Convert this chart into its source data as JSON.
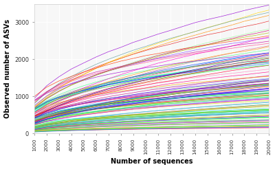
{
  "x_min": 1000,
  "x_max": 20000,
  "y_min": 0,
  "y_max": 3500,
  "x_ticks": [
    1000,
    2000,
    3000,
    4000,
    5000,
    6000,
    7000,
    8000,
    9000,
    10000,
    11000,
    12000,
    13000,
    14000,
    15000,
    16000,
    17000,
    18000,
    19000,
    20000
  ],
  "y_ticks": [
    0,
    1000,
    2000,
    3000
  ],
  "xlabel": "Number of sequences",
  "ylabel": "Observed number of ASVs",
  "n_curves": 120,
  "background_color": "#f7f7f7",
  "line_alpha": 0.85,
  "line_width": 0.5,
  "colors": [
    "#e41a1c",
    "#ff69b4",
    "#377eb8",
    "#4daf4a",
    "#984ea3",
    "#ff7f00",
    "#a65628",
    "#f781bf",
    "#aaaaaa",
    "#00ced1",
    "#8b0000",
    "#00cd66",
    "#1e90ff",
    "#ffd700",
    "#dc143c",
    "#7ccd7c",
    "#9400d3",
    "#ff4500",
    "#2e8b57",
    "#00bfff",
    "#ff1493",
    "#adff2f",
    "#6495ed",
    "#ff6347",
    "#40e0d0",
    "#ee82ee",
    "#cdcd00",
    "#90ee90",
    "#87ceeb",
    "#dda0dd",
    "#20b2aa",
    "#b0c4de",
    "#ffb6c1",
    "#98fb98",
    "#afeeee",
    "#db7093",
    "#ffe4b5",
    "#b0e0e6",
    "#bc8f8f",
    "#5f9ea0",
    "#d2691e",
    "#cd5c5c",
    "#4682b4",
    "#32cd32",
    "#ba55d3",
    "#ff8c00",
    "#3cb371",
    "#6a5acd",
    "#ff85c2",
    "#00ff7f",
    "#c71585",
    "#66cdaa",
    "#9932cc",
    "#8fbc8f",
    "#e9967a",
    "#48d1cc",
    "#f08080",
    "#7b68ee",
    "#39ff14",
    "#ff2400",
    "#00ffff",
    "#ff00ff",
    "#ffaa00",
    "#00aa44",
    "#aa00ff",
    "#ff0088",
    "#88ff00",
    "#0088ff",
    "#ff4488",
    "#44ff88",
    "#8844ff",
    "#ff8844",
    "#44ff00",
    "#0044ff",
    "#ff0044",
    "#00ff44",
    "#4400ff",
    "#ffcc00",
    "#00ccff",
    "#cc00ff",
    "#ff00cc",
    "#00ffcc",
    "#ccff00",
    "#ff6600",
    "#0066ff",
    "#6600ff",
    "#ff0066",
    "#00ff66",
    "#66ff00",
    "#cc6600",
    "#0066cc",
    "#6600cc",
    "#cc0066",
    "#00cc66",
    "#66cc00",
    "#ff3300",
    "#0033ff",
    "#3300ff",
    "#ff0033",
    "#00ff33",
    "#33ff00",
    "#cc3300",
    "#0033cc",
    "#3300cc",
    "#cc0033",
    "#00cc33",
    "#33cc00",
    "#ff9900",
    "#0099ff",
    "#9900ff",
    "#ff0099",
    "#00ff99",
    "#99ff00",
    "#cc9900",
    "#0099cc",
    "#9900cc",
    "#cc0099",
    "#00cc99",
    "#99cc00",
    "#aabb00",
    "#00aabb",
    "#bb00aa"
  ],
  "seed": 7
}
